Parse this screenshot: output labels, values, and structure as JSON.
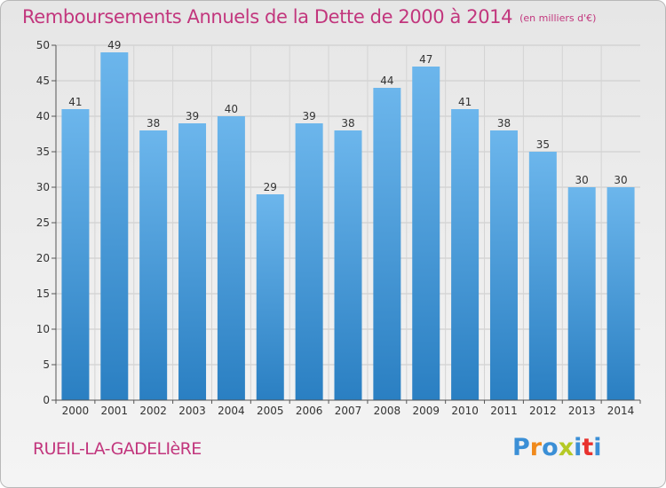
{
  "page": {
    "title": "Remboursements Annuels de la Dette de 2000 à 2014",
    "unit": "(en milliers d'€)",
    "commune": "RUEIL-LA-GADELIèRE",
    "logo_text": "Proxiti"
  },
  "colors": {
    "title": "#c2367d",
    "bar_top": "#6cb6ec",
    "bar_bottom": "#2a7fc2",
    "logo": [
      "#3b8fd6",
      "#f08a1c",
      "#3b8fd6",
      "#b5c925",
      "#3b8fd6",
      "#e8322e",
      "#3b8fd6"
    ]
  },
  "chart_data": {
    "type": "bar",
    "title": "Remboursements Annuels de la Dette de 2000 à 2014",
    "subtitle": "(en milliers d'€)",
    "categories": [
      "2000",
      "2001",
      "2002",
      "2003",
      "2004",
      "2005",
      "2006",
      "2007",
      "2008",
      "2009",
      "2010",
      "2011",
      "2012",
      "2013",
      "2014"
    ],
    "values": [
      41,
      49,
      38,
      39,
      40,
      29,
      39,
      38,
      44,
      47,
      41,
      38,
      35,
      30,
      30
    ],
    "ylim": [
      0,
      50
    ],
    "yticks": [
      0,
      5,
      10,
      15,
      20,
      25,
      30,
      35,
      40,
      45,
      50
    ],
    "grid": true,
    "data_labels": true
  }
}
